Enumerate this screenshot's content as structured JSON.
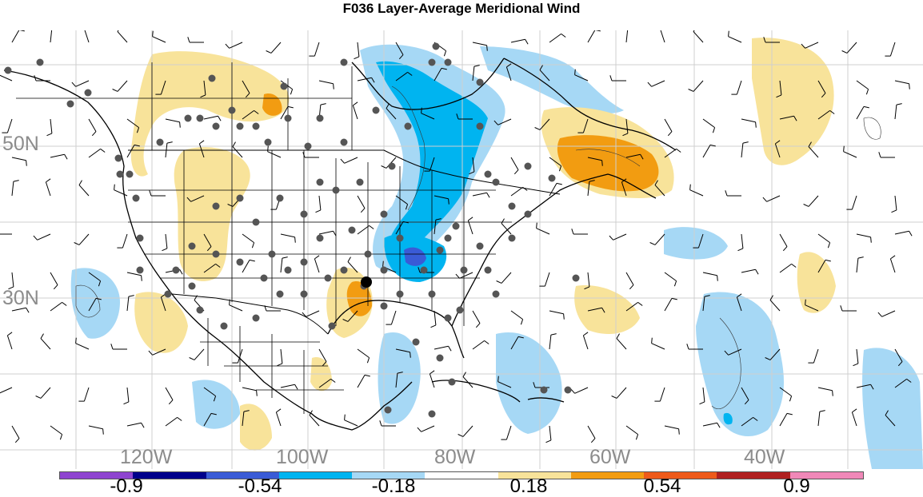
{
  "title": "F036 Layer-Average Meridional Wind",
  "latitude_labels": [
    "50N",
    "30N"
  ],
  "longitude_labels": [
    "120W",
    "100W",
    "80W",
    "60W",
    "40W"
  ],
  "colorbar": {
    "colors": [
      "#8e44d0",
      "#00008b",
      "#3a5bd6",
      "#00b4f0",
      "#a6d8f5",
      "#ffffff",
      "#f8e39a",
      "#f29c11",
      "#ee5a1a",
      "#b02020",
      "#f088b8"
    ],
    "labels": [
      "-0.9",
      "-0.54",
      "-0.18",
      "0.18",
      "0.54",
      "0.9"
    ]
  },
  "fill_colors": {
    "light_blue": "#a6d8f5",
    "blue": "#00b4f0",
    "dark_blue": "#3a5bd6",
    "yellow": "#f8e39a",
    "orange": "#f29c11"
  },
  "station_marker_color": "#555555",
  "highlight_station_color": "#000000"
}
